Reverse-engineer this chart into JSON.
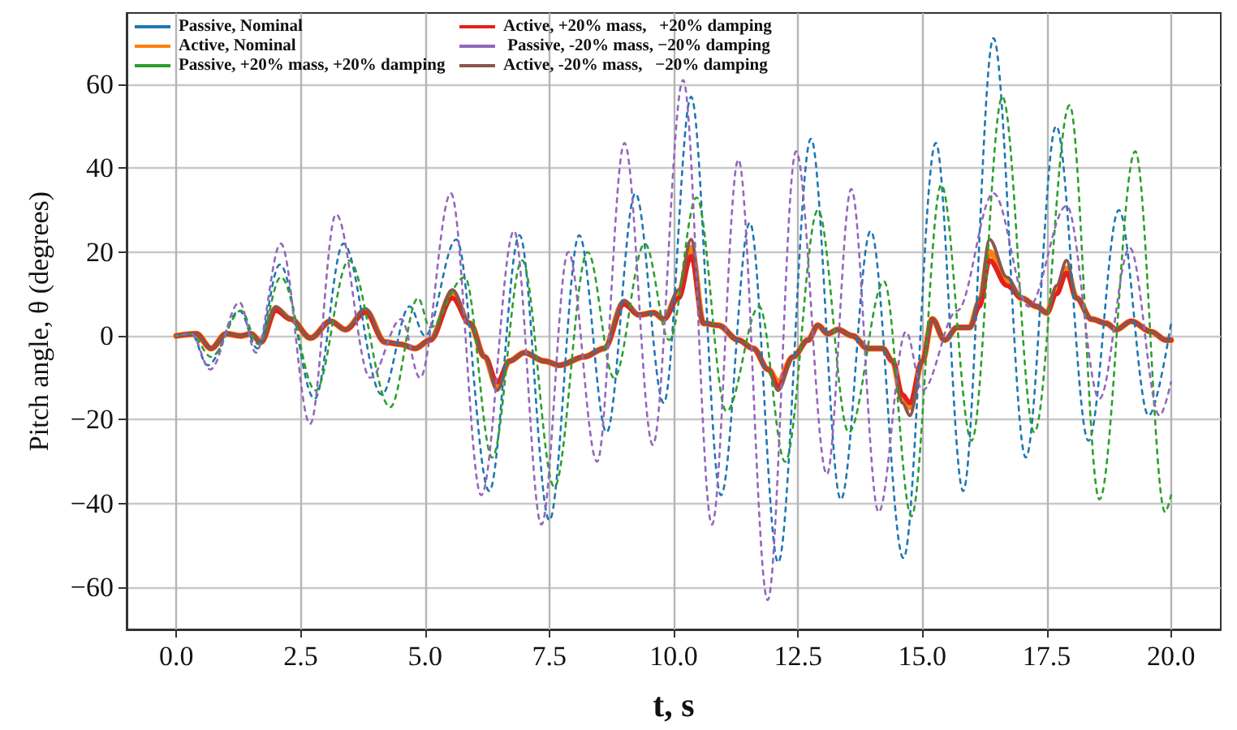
{
  "chart_data": {
    "type": "line",
    "xlabel": "t, s",
    "ylabel": "Pitch angle, θ (degrees)",
    "xlim": [
      -1,
      21
    ],
    "ylim": [
      -70,
      77
    ],
    "xticks": [
      {
        "value": 0,
        "label": "0.0"
      },
      {
        "value": 2.5,
        "label": "2.5"
      },
      {
        "value": 5,
        "label": "5.0"
      },
      {
        "value": 7.5,
        "label": "7.5"
      },
      {
        "value": 10,
        "label": "10.0"
      },
      {
        "value": 12.5,
        "label": "12.5"
      },
      {
        "value": 15,
        "label": "15.0"
      },
      {
        "value": 17.5,
        "label": "17.5"
      },
      {
        "value": 20,
        "label": "20.0"
      }
    ],
    "yticks": [
      {
        "value": -60,
        "label": "−60"
      },
      {
        "value": -40,
        "label": "−40"
      },
      {
        "value": -20,
        "label": "−20"
      },
      0,
      20,
      40,
      60
    ],
    "grid": true,
    "legend": "top left",
    "marker": "none",
    "series": [
      {
        "name": "Passive, Nominal",
        "color": "#1f77b4",
        "line_style": "dashed",
        "x": [
          0,
          0.3,
          0.63,
          1.27,
          1.63,
          2.08,
          2.78,
          3.36,
          4.13,
          4.69,
          5.0,
          5.63,
          6.29,
          6.9,
          7.5,
          8.1,
          8.65,
          9.23,
          9.8,
          10.35,
          10.95,
          11.53,
          12.1,
          12.76,
          13.36,
          13.96,
          14.62,
          15.27,
          15.82,
          16.43,
          17.08,
          17.69,
          18.34,
          18.95,
          19.55,
          20
        ],
        "values": [
          0,
          0.5,
          -7,
          6,
          -3,
          17,
          -15,
          22,
          -14,
          7,
          0,
          23,
          -37,
          24,
          -44,
          24,
          -23,
          34,
          -16,
          57,
          -38,
          27,
          -54,
          47,
          -39,
          25,
          -53,
          46,
          -37,
          71,
          -29,
          50,
          -25,
          30,
          -19,
          3
        ]
      },
      {
        "name": "Active, Nominal",
        "color": "#ff7f0e",
        "line_style": "solid",
        "x": [
          0,
          0.4,
          0.7,
          1.0,
          1.3,
          1.5,
          1.7,
          2.0,
          2.3,
          2.7,
          3.1,
          3.4,
          3.8,
          4.2,
          4.5,
          4.8,
          5.1,
          5.55,
          5.9,
          6.2,
          6.45,
          6.7,
          7.0,
          7.4,
          7.7,
          8.2,
          8.6,
          9.0,
          9.3,
          9.6,
          9.8,
          10.1,
          10.35,
          10.6,
          10.9,
          11.3,
          11.6,
          11.9,
          12.1,
          12.4,
          12.7,
          12.9,
          13.1,
          13.3,
          13.6,
          13.9,
          14.2,
          14.4,
          14.6,
          14.75,
          15.0,
          15.2,
          15.45,
          15.7,
          15.95,
          16.15,
          16.35,
          16.7,
          17.0,
          17.3,
          17.5,
          17.7,
          17.9,
          18.1,
          18.4,
          18.7,
          18.9,
          19.2,
          19.6,
          19.9,
          20
        ],
        "values": [
          0,
          0.5,
          -3,
          0.5,
          0,
          0.5,
          -1.5,
          6.5,
          4,
          -0.5,
          3.5,
          1.5,
          6,
          -1.5,
          -2,
          -3,
          -1,
          10,
          3,
          -5,
          -12,
          -6,
          -4,
          -6,
          -7,
          -5,
          -3,
          8,
          5,
          5.5,
          4,
          10,
          21,
          3,
          2.5,
          -1,
          -3,
          -8,
          -11,
          -5,
          -1,
          2.5,
          0.5,
          1.5,
          0,
          -3,
          -3,
          -6,
          -15,
          -17,
          -6,
          4,
          -1,
          2,
          2,
          8,
          20,
          13,
          9,
          7,
          5.5,
          11,
          16,
          9,
          4,
          3,
          1.5,
          3.5,
          1,
          -1,
          -1
        ]
      },
      {
        "name": "Passive, +20% mass, +20% damping",
        "color": "#2ca02c",
        "line_style": "dashed",
        "x": [
          0,
          0.3,
          0.7,
          1.3,
          1.65,
          2.1,
          2.8,
          3.47,
          4.3,
          4.86,
          5.1,
          5.8,
          6.35,
          6.95,
          7.6,
          8.27,
          8.8,
          9.42,
          9.91,
          10.46,
          11.06,
          11.72,
          12.24,
          12.9,
          13.52,
          14.23,
          14.78,
          15.38,
          15.99,
          16.61,
          17.25,
          17.96,
          18.56,
          19.28,
          19.88,
          20
        ],
        "values": [
          0,
          0.5,
          -5,
          6,
          -2,
          14,
          -13,
          18,
          -17,
          9,
          2,
          14,
          -29,
          18,
          -36,
          20,
          -10,
          22,
          -1,
          33,
          -18,
          7,
          -30,
          30,
          -23,
          13,
          -43,
          36,
          -25,
          57,
          -23,
          55,
          -39,
          44,
          -42,
          -38
        ]
      },
      {
        "name": "Active, +20% mass,   +20% damping",
        "color": "#e3211c",
        "line_style": "solid",
        "x": [
          0,
          0.4,
          0.7,
          1.0,
          1.3,
          1.5,
          1.7,
          2.0,
          2.3,
          2.7,
          3.1,
          3.4,
          3.8,
          4.2,
          4.5,
          4.8,
          5.1,
          5.55,
          5.9,
          6.2,
          6.45,
          6.7,
          7.0,
          7.4,
          7.7,
          8.2,
          8.6,
          9.0,
          9.3,
          9.6,
          9.8,
          10.1,
          10.35,
          10.6,
          10.9,
          11.3,
          11.6,
          11.9,
          12.1,
          12.4,
          12.7,
          12.9,
          13.1,
          13.3,
          13.6,
          13.9,
          14.2,
          14.4,
          14.6,
          14.75,
          15.0,
          15.2,
          15.45,
          15.7,
          15.95,
          16.15,
          16.35,
          16.7,
          17.0,
          17.3,
          17.5,
          17.7,
          17.9,
          18.1,
          18.4,
          18.7,
          18.9,
          19.2,
          19.6,
          19.9,
          20
        ],
        "values": [
          0,
          0.5,
          -3,
          0.5,
          0,
          0.5,
          -1.5,
          6,
          4,
          -0.5,
          3.5,
          1.5,
          5.5,
          -1.5,
          -2,
          -3,
          -1,
          9,
          3,
          -5,
          -11,
          -6,
          -4,
          -6,
          -7,
          -5,
          -3,
          7.5,
          5,
          5.5,
          4,
          9,
          19,
          3,
          2.5,
          -1,
          -3,
          -8,
          -12,
          -5,
          -1,
          2.5,
          0.5,
          1.5,
          0,
          -3,
          -3,
          -6,
          -14,
          -16,
          -6,
          4,
          -1,
          2,
          2,
          7,
          18,
          12,
          9,
          7,
          5.5,
          10,
          15,
          9,
          4,
          3,
          1.5,
          3.5,
          1,
          -1,
          -1
        ]
      },
      {
        "name": " Passive, -20% mass, −20% damping",
        "color": "#9467bd",
        "line_style": "dashed",
        "x": [
          0,
          0.3,
          0.68,
          1.27,
          1.6,
          2.1,
          2.69,
          3.21,
          3.9,
          4.52,
          4.9,
          5.52,
          6.13,
          6.79,
          7.34,
          7.88,
          8.46,
          9.01,
          9.58,
          10.19,
          10.77,
          11.3,
          11.89,
          12.46,
          13.08,
          13.57,
          14.12,
          14.67,
          15.0,
          15.7,
          16.43,
          17.14,
          17.9,
          18.56,
          19.17,
          19.77,
          20
        ],
        "values": [
          0,
          0.5,
          -8,
          8,
          -4,
          22,
          -21,
          29,
          -10,
          4,
          -10,
          34,
          -38,
          25,
          -45,
          20,
          -30,
          46,
          -26,
          61,
          -45,
          42,
          -63,
          44,
          -33,
          35,
          -42,
          1,
          -13,
          6,
          34,
          7,
          31,
          -15,
          21,
          -19,
          -11
        ]
      },
      {
        "name": "Active, -20% mass,   −20% damping",
        "color": "#8c564b",
        "line_style": "solid",
        "x": [
          0,
          0.4,
          0.7,
          1.0,
          1.3,
          1.5,
          1.7,
          2.0,
          2.3,
          2.7,
          3.1,
          3.4,
          3.8,
          4.2,
          4.5,
          4.8,
          5.1,
          5.55,
          5.9,
          6.2,
          6.45,
          6.7,
          7.0,
          7.4,
          7.7,
          8.2,
          8.6,
          9.0,
          9.3,
          9.6,
          9.8,
          10.1,
          10.35,
          10.6,
          10.9,
          11.3,
          11.6,
          11.9,
          12.1,
          12.4,
          12.7,
          12.9,
          13.1,
          13.3,
          13.6,
          13.9,
          14.2,
          14.4,
          14.6,
          14.75,
          15.0,
          15.2,
          15.45,
          15.7,
          15.95,
          16.15,
          16.35,
          16.7,
          17.0,
          17.3,
          17.5,
          17.7,
          17.9,
          18.1,
          18.4,
          18.7,
          18.9,
          19.2,
          19.6,
          19.9,
          20
        ],
        "values": [
          0,
          0.5,
          -3,
          0.5,
          0,
          0.5,
          -1.5,
          7,
          4,
          -0.5,
          3.5,
          1.5,
          6.5,
          -1.5,
          -2,
          -3,
          -1,
          11,
          3,
          -5,
          -13,
          -6,
          -4,
          -6,
          -7,
          -5,
          -3,
          8.5,
          5,
          5.5,
          4,
          11,
          23,
          3,
          2.5,
          -1,
          -3,
          -8,
          -13,
          -5,
          -1,
          2.5,
          0.5,
          1.5,
          0,
          -3,
          -3,
          -6,
          -16,
          -19,
          -6,
          4,
          -1,
          2,
          2,
          9,
          23,
          14,
          9,
          7,
          5.5,
          12,
          18,
          9,
          4,
          3,
          1.5,
          3.5,
          1,
          -1,
          -1
        ]
      }
    ]
  }
}
